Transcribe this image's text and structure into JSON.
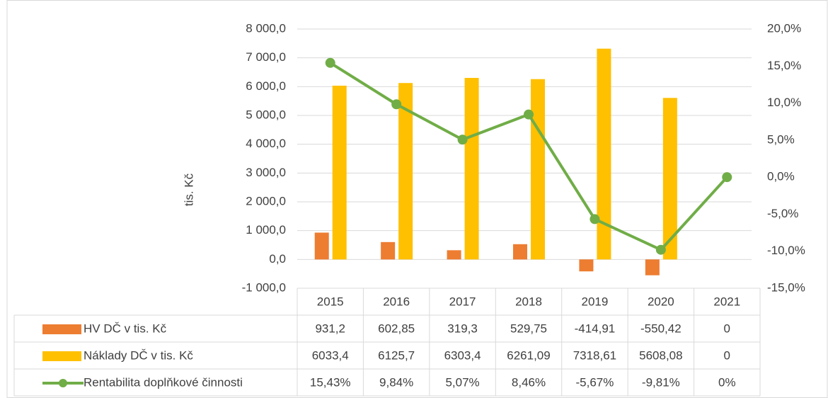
{
  "chart_data": {
    "type": "bar",
    "y_axis_label": "tis. Kč",
    "categories": [
      "2015",
      "2016",
      "2017",
      "2018",
      "2019",
      "2020",
      "2021"
    ],
    "series": [
      {
        "name": "HV DČ v tis. Kč",
        "type": "bar",
        "color": "#ed7d31",
        "values": [
          931.2,
          602.85,
          319.3,
          529.75,
          -414.91,
          -550.42,
          0
        ],
        "value_labels": [
          "931,2",
          "602,85",
          "319,3",
          "529,75",
          "-414,91",
          "-550,42",
          "0"
        ]
      },
      {
        "name": "Náklady DČ v tis. Kč",
        "type": "bar",
        "color": "#ffc000",
        "values": [
          6033.4,
          6125.7,
          6303.4,
          6261.09,
          7318.61,
          5608.08,
          0
        ],
        "value_labels": [
          "6033,4",
          "6125,7",
          "6303,4",
          "6261,09",
          "7318,61",
          "5608,08",
          "0"
        ]
      },
      {
        "name": "Rentabilita doplňkové činnosti",
        "type": "line",
        "axis": "y2",
        "color": "#70ad47",
        "values": [
          15.43,
          9.84,
          5.07,
          8.46,
          -5.67,
          -9.81,
          0
        ],
        "value_labels": [
          "15,43%",
          "9,84%",
          "5,07%",
          "8,46%",
          "-5,67%",
          "-9,81%",
          "0%"
        ]
      }
    ],
    "ylim": [
      -1000,
      8000
    ],
    "yticks": [
      {
        "value": -1000,
        "label": "-1 000,0"
      },
      {
        "value": 0,
        "label": "0,0"
      },
      {
        "value": 1000,
        "label": "1 000,0"
      },
      {
        "value": 2000,
        "label": "2 000,0"
      },
      {
        "value": 3000,
        "label": "3 000,0"
      },
      {
        "value": 4000,
        "label": "4 000,0"
      },
      {
        "value": 5000,
        "label": "5 000,0"
      },
      {
        "value": 6000,
        "label": "6 000,0"
      },
      {
        "value": 7000,
        "label": "7 000,0"
      },
      {
        "value": 8000,
        "label": "8 000,0"
      }
    ],
    "y2lim": [
      -15,
      20
    ],
    "y2ticks": [
      {
        "value": -15,
        "label": "-15,0%"
      },
      {
        "value": -10,
        "label": "-10,0%"
      },
      {
        "value": -5,
        "label": "-5,0%"
      },
      {
        "value": 0,
        "label": "0,0%"
      },
      {
        "value": 5,
        "label": "5,0%"
      },
      {
        "value": 10,
        "label": "10,0%"
      },
      {
        "value": 15,
        "label": "15,0%"
      },
      {
        "value": 20,
        "label": "20,0%"
      }
    ],
    "grid": true,
    "data_table": true
  }
}
